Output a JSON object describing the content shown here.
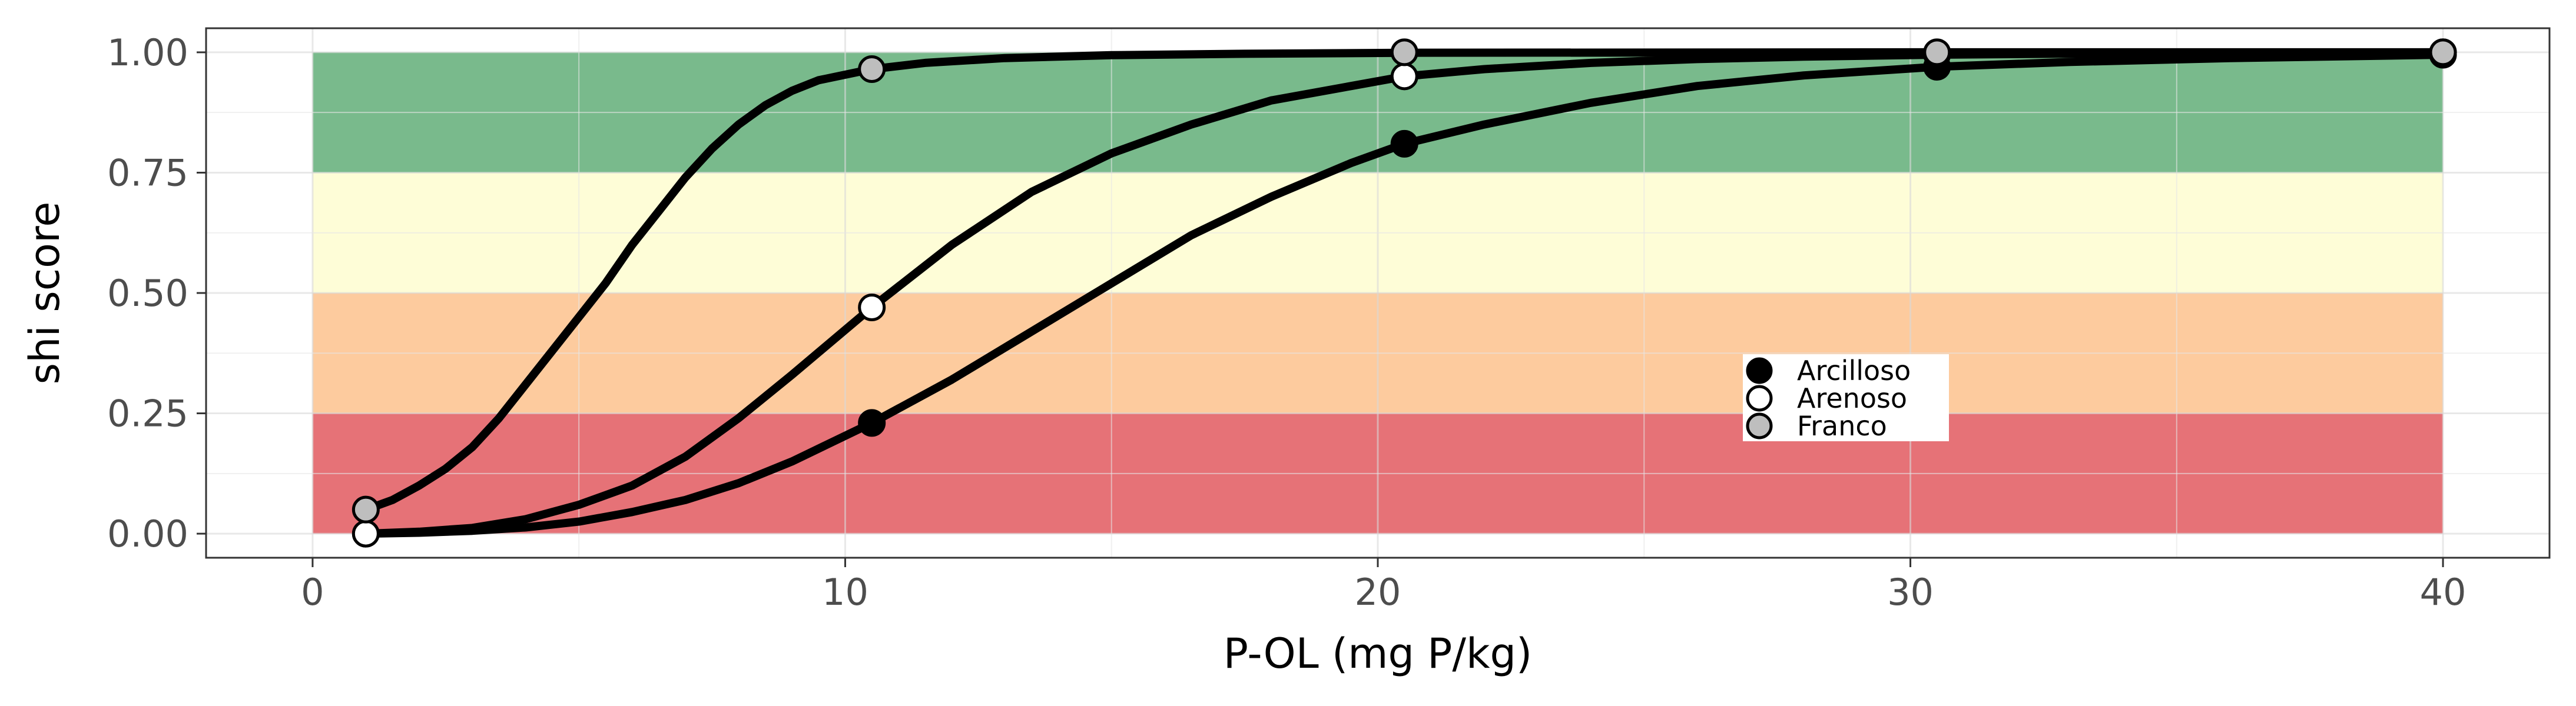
{
  "chart_data": {
    "type": "line",
    "title": "",
    "xlabel": "P-OL (mg P/kg)",
    "ylabel": "shi score",
    "xlim": [
      -2,
      42
    ],
    "ylim": [
      -0.05,
      1.05
    ],
    "x_ticks": [
      0,
      10,
      20,
      30,
      40
    ],
    "y_ticks": [
      0,
      0.25,
      0.5,
      0.75,
      1
    ],
    "x_tick_labels": [
      "0",
      "10",
      "20",
      "30",
      "40"
    ],
    "y_tick_labels": [
      "0.00",
      "0.25",
      "0.50",
      "0.75",
      "1.00"
    ],
    "grid": true,
    "legend_position": "inside-right",
    "bands": [
      {
        "from": 0,
        "to": 0.25,
        "color": "#e36368"
      },
      {
        "from": 0.25,
        "to": 0.5,
        "color": "#fdc593"
      },
      {
        "from": 0.5,
        "to": 0.75,
        "color": "#fefdd3"
      },
      {
        "from": 0.75,
        "to": 1.0,
        "color": "#6ab37f"
      }
    ],
    "band_x_range": [
      0,
      40
    ],
    "series": [
      {
        "name": "Arcilloso",
        "fill": "#000000",
        "points": [
          {
            "x": 1,
            "y": 0.0
          },
          {
            "x": 10.5,
            "y": 0.23
          },
          {
            "x": 20.5,
            "y": 0.81
          },
          {
            "x": 30.5,
            "y": 0.97
          },
          {
            "x": 40,
            "y": 0.995
          }
        ],
        "curve": [
          {
            "x": 1,
            "y": 0.0
          },
          {
            "x": 2,
            "y": 0.002
          },
          {
            "x": 3,
            "y": 0.006
          },
          {
            "x": 4,
            "y": 0.013
          },
          {
            "x": 5,
            "y": 0.025
          },
          {
            "x": 6,
            "y": 0.045
          },
          {
            "x": 7,
            "y": 0.07
          },
          {
            "x": 8,
            "y": 0.105
          },
          {
            "x": 9,
            "y": 0.15
          },
          {
            "x": 10.5,
            "y": 0.23
          },
          {
            "x": 12,
            "y": 0.32
          },
          {
            "x": 13.5,
            "y": 0.42
          },
          {
            "x": 15,
            "y": 0.52
          },
          {
            "x": 16.5,
            "y": 0.62
          },
          {
            "x": 18,
            "y": 0.7
          },
          {
            "x": 19.5,
            "y": 0.77
          },
          {
            "x": 20.5,
            "y": 0.81
          },
          {
            "x": 22,
            "y": 0.85
          },
          {
            "x": 24,
            "y": 0.895
          },
          {
            "x": 26,
            "y": 0.93
          },
          {
            "x": 28,
            "y": 0.952
          },
          {
            "x": 30.5,
            "y": 0.97
          },
          {
            "x": 33,
            "y": 0.98
          },
          {
            "x": 36,
            "y": 0.988
          },
          {
            "x": 40,
            "y": 0.995
          }
        ]
      },
      {
        "name": "Arenoso",
        "fill": "#ffffff",
        "points": [
          {
            "x": 1,
            "y": 0.0
          },
          {
            "x": 10.5,
            "y": 0.47
          },
          {
            "x": 20.5,
            "y": 0.95
          },
          {
            "x": 30.5,
            "y": 0.995
          },
          {
            "x": 40,
            "y": 1.0
          }
        ],
        "curve": [
          {
            "x": 1,
            "y": 0.0
          },
          {
            "x": 2,
            "y": 0.004
          },
          {
            "x": 3,
            "y": 0.012
          },
          {
            "x": 4,
            "y": 0.03
          },
          {
            "x": 5,
            "y": 0.06
          },
          {
            "x": 6,
            "y": 0.1
          },
          {
            "x": 7,
            "y": 0.16
          },
          {
            "x": 8,
            "y": 0.24
          },
          {
            "x": 9,
            "y": 0.33
          },
          {
            "x": 10.5,
            "y": 0.47
          },
          {
            "x": 12,
            "y": 0.6
          },
          {
            "x": 13.5,
            "y": 0.71
          },
          {
            "x": 15,
            "y": 0.79
          },
          {
            "x": 16.5,
            "y": 0.85
          },
          {
            "x": 18,
            "y": 0.9
          },
          {
            "x": 19.5,
            "y": 0.93
          },
          {
            "x": 20.5,
            "y": 0.95
          },
          {
            "x": 22,
            "y": 0.965
          },
          {
            "x": 24,
            "y": 0.978
          },
          {
            "x": 26,
            "y": 0.986
          },
          {
            "x": 28,
            "y": 0.991
          },
          {
            "x": 30.5,
            "y": 0.995
          },
          {
            "x": 34,
            "y": 0.998
          },
          {
            "x": 40,
            "y": 1.0
          }
        ]
      },
      {
        "name": "Franco",
        "fill": "#bebebe",
        "points": [
          {
            "x": 1,
            "y": 0.05
          },
          {
            "x": 10.5,
            "y": 0.965
          },
          {
            "x": 20.5,
            "y": 1.0
          },
          {
            "x": 30.5,
            "y": 1.0
          },
          {
            "x": 40,
            "y": 1.0
          }
        ],
        "curve": [
          {
            "x": 1,
            "y": 0.05
          },
          {
            "x": 1.5,
            "y": 0.07
          },
          {
            "x": 2,
            "y": 0.1
          },
          {
            "x": 2.5,
            "y": 0.135
          },
          {
            "x": 3,
            "y": 0.18
          },
          {
            "x": 3.5,
            "y": 0.24
          },
          {
            "x": 4,
            "y": 0.31
          },
          {
            "x": 4.5,
            "y": 0.38
          },
          {
            "x": 5,
            "y": 0.45
          },
          {
            "x": 5.5,
            "y": 0.52
          },
          {
            "x": 6,
            "y": 0.6
          },
          {
            "x": 6.5,
            "y": 0.67
          },
          {
            "x": 7,
            "y": 0.74
          },
          {
            "x": 7.5,
            "y": 0.8
          },
          {
            "x": 8,
            "y": 0.85
          },
          {
            "x": 8.5,
            "y": 0.89
          },
          {
            "x": 9,
            "y": 0.92
          },
          {
            "x": 9.5,
            "y": 0.942
          },
          {
            "x": 10.5,
            "y": 0.965
          },
          {
            "x": 11.5,
            "y": 0.978
          },
          {
            "x": 13,
            "y": 0.988
          },
          {
            "x": 15,
            "y": 0.994
          },
          {
            "x": 17.5,
            "y": 0.997
          },
          {
            "x": 20.5,
            "y": 0.999
          },
          {
            "x": 30,
            "y": 1.0
          },
          {
            "x": 40,
            "y": 1.0
          }
        ]
      }
    ]
  }
}
